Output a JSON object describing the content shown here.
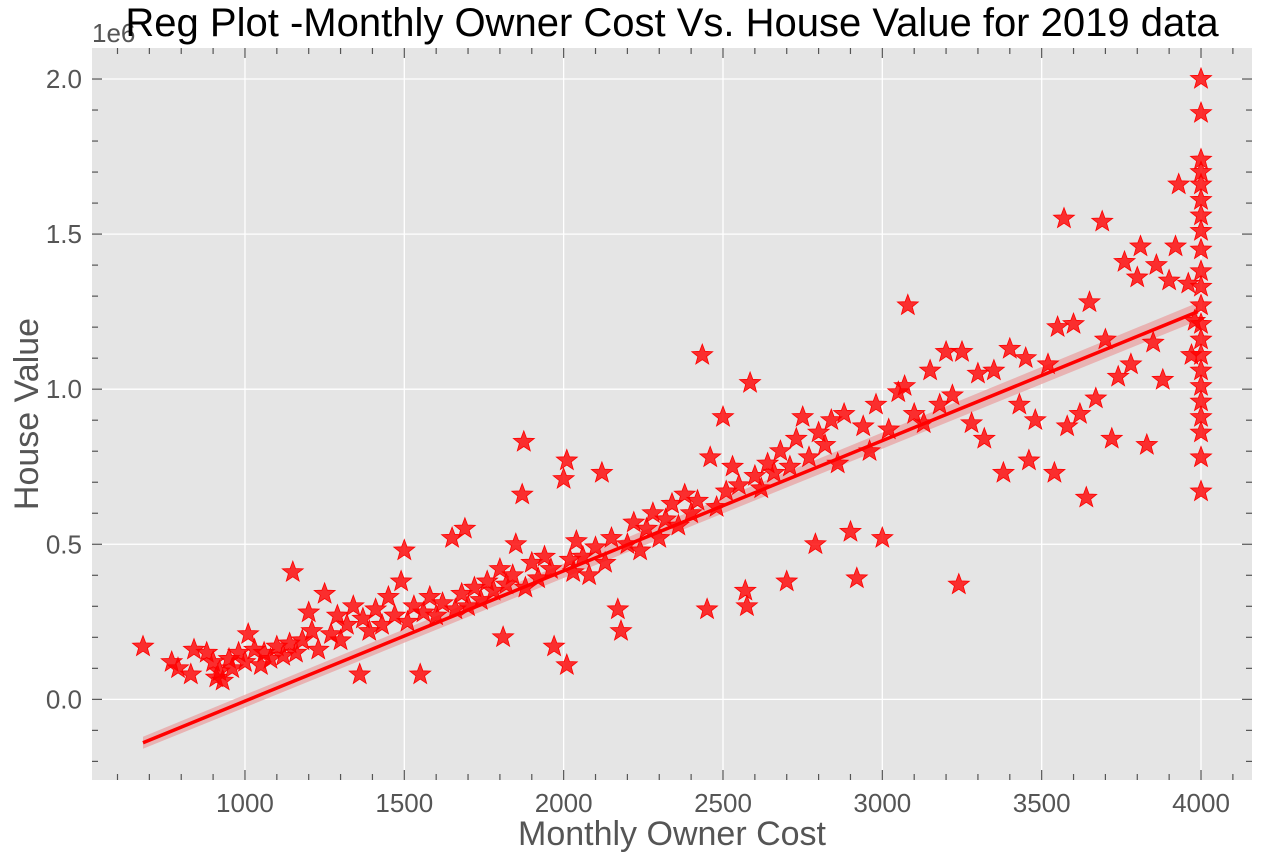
{
  "chart_data": {
    "type": "scatter",
    "title": "Reg Plot -Monthly Owner Cost Vs. House Value for 2019 data",
    "xlabel": "Monthly Owner Cost",
    "ylabel": "House Value",
    "y_offset_label": "1e6",
    "xlim": [
      520,
      4160
    ],
    "ylim": [
      -0.26,
      2.1
    ],
    "x_ticks": [
      1000,
      1500,
      2000,
      2500,
      3000,
      3500,
      4000
    ],
    "x_tick_labels": [
      "1000",
      "1500",
      "2000",
      "2500",
      "3000",
      "3500",
      "4000"
    ],
    "y_ticks": [
      0.0,
      0.5,
      1.0,
      1.5,
      2.0
    ],
    "y_tick_labels": [
      "0.0",
      "0.5",
      "1.0",
      "1.5",
      "2.0"
    ],
    "grid": true,
    "background": "#e5e5e5",
    "marker": "star",
    "marker_color": "#ff0000",
    "line_color": "#ff0000",
    "band_color": "#e8a6a6",
    "series": [
      {
        "kind": "scatter",
        "points": [
          [
            680,
            0.17
          ],
          [
            770,
            0.12
          ],
          [
            790,
            0.1
          ],
          [
            830,
            0.08
          ],
          [
            840,
            0.16
          ],
          [
            880,
            0.15
          ],
          [
            900,
            0.12
          ],
          [
            910,
            0.07
          ],
          [
            920,
            0.09
          ],
          [
            930,
            0.06
          ],
          [
            950,
            0.13
          ],
          [
            960,
            0.1
          ],
          [
            980,
            0.15
          ],
          [
            1000,
            0.12
          ],
          [
            1010,
            0.21
          ],
          [
            1030,
            0.16
          ],
          [
            1050,
            0.11
          ],
          [
            1060,
            0.15
          ],
          [
            1080,
            0.13
          ],
          [
            1100,
            0.17
          ],
          [
            1120,
            0.14
          ],
          [
            1140,
            0.18
          ],
          [
            1150,
            0.41
          ],
          [
            1160,
            0.15
          ],
          [
            1180,
            0.19
          ],
          [
            1200,
            0.28
          ],
          [
            1210,
            0.22
          ],
          [
            1230,
            0.16
          ],
          [
            1250,
            0.34
          ],
          [
            1270,
            0.21
          ],
          [
            1290,
            0.27
          ],
          [
            1300,
            0.19
          ],
          [
            1320,
            0.24
          ],
          [
            1340,
            0.3
          ],
          [
            1360,
            0.08
          ],
          [
            1370,
            0.26
          ],
          [
            1390,
            0.22
          ],
          [
            1410,
            0.29
          ],
          [
            1430,
            0.24
          ],
          [
            1450,
            0.33
          ],
          [
            1470,
            0.27
          ],
          [
            1490,
            0.38
          ],
          [
            1500,
            0.48
          ],
          [
            1510,
            0.25
          ],
          [
            1530,
            0.3
          ],
          [
            1550,
            0.08
          ],
          [
            1560,
            0.28
          ],
          [
            1580,
            0.33
          ],
          [
            1600,
            0.27
          ],
          [
            1620,
            0.31
          ],
          [
            1650,
            0.52
          ],
          [
            1660,
            0.29
          ],
          [
            1680,
            0.34
          ],
          [
            1690,
            0.55
          ],
          [
            1700,
            0.3
          ],
          [
            1720,
            0.36
          ],
          [
            1740,
            0.32
          ],
          [
            1760,
            0.38
          ],
          [
            1780,
            0.35
          ],
          [
            1800,
            0.42
          ],
          [
            1810,
            0.2
          ],
          [
            1820,
            0.37
          ],
          [
            1840,
            0.4
          ],
          [
            1850,
            0.5
          ],
          [
            1870,
            0.66
          ],
          [
            1875,
            0.83
          ],
          [
            1880,
            0.36
          ],
          [
            1900,
            0.44
          ],
          [
            1920,
            0.39
          ],
          [
            1940,
            0.46
          ],
          [
            1960,
            0.42
          ],
          [
            1970,
            0.17
          ],
          [
            2000,
            0.71
          ],
          [
            2010,
            0.77
          ],
          [
            2010,
            0.11
          ],
          [
            2020,
            0.45
          ],
          [
            2030,
            0.41
          ],
          [
            2040,
            0.51
          ],
          [
            2060,
            0.46
          ],
          [
            2080,
            0.4
          ],
          [
            2100,
            0.49
          ],
          [
            2120,
            0.73
          ],
          [
            2130,
            0.44
          ],
          [
            2150,
            0.52
          ],
          [
            2170,
            0.29
          ],
          [
            2180,
            0.22
          ],
          [
            2200,
            0.5
          ],
          [
            2220,
            0.57
          ],
          [
            2240,
            0.48
          ],
          [
            2260,
            0.55
          ],
          [
            2280,
            0.6
          ],
          [
            2300,
            0.52
          ],
          [
            2320,
            0.58
          ],
          [
            2340,
            0.63
          ],
          [
            2360,
            0.56
          ],
          [
            2380,
            0.66
          ],
          [
            2400,
            0.6
          ],
          [
            2420,
            0.64
          ],
          [
            2435,
            1.11
          ],
          [
            2450,
            0.29
          ],
          [
            2460,
            0.78
          ],
          [
            2480,
            0.62
          ],
          [
            2500,
            0.91
          ],
          [
            2510,
            0.67
          ],
          [
            2530,
            0.75
          ],
          [
            2550,
            0.69
          ],
          [
            2570,
            0.35
          ],
          [
            2575,
            0.3
          ],
          [
            2585,
            1.02
          ],
          [
            2600,
            0.72
          ],
          [
            2620,
            0.68
          ],
          [
            2640,
            0.76
          ],
          [
            2660,
            0.73
          ],
          [
            2680,
            0.8
          ],
          [
            2700,
            0.38
          ],
          [
            2710,
            0.75
          ],
          [
            2730,
            0.84
          ],
          [
            2750,
            0.91
          ],
          [
            2770,
            0.78
          ],
          [
            2790,
            0.5
          ],
          [
            2800,
            0.86
          ],
          [
            2820,
            0.82
          ],
          [
            2840,
            0.9
          ],
          [
            2860,
            0.76
          ],
          [
            2880,
            0.92
          ],
          [
            2900,
            0.54
          ],
          [
            2920,
            0.39
          ],
          [
            2940,
            0.88
          ],
          [
            2960,
            0.8
          ],
          [
            2980,
            0.95
          ],
          [
            3000,
            0.52
          ],
          [
            3020,
            0.87
          ],
          [
            3050,
            0.99
          ],
          [
            3070,
            1.01
          ],
          [
            3080,
            1.27
          ],
          [
            3100,
            0.92
          ],
          [
            3130,
            0.89
          ],
          [
            3150,
            1.06
          ],
          [
            3180,
            0.95
          ],
          [
            3200,
            1.12
          ],
          [
            3220,
            0.98
          ],
          [
            3240,
            0.37
          ],
          [
            3250,
            1.12
          ],
          [
            3280,
            0.89
          ],
          [
            3300,
            1.05
          ],
          [
            3320,
            0.84
          ],
          [
            3350,
            1.06
          ],
          [
            3380,
            0.73
          ],
          [
            3400,
            1.13
          ],
          [
            3430,
            0.95
          ],
          [
            3450,
            1.1
          ],
          [
            3460,
            0.77
          ],
          [
            3480,
            0.9
          ],
          [
            3520,
            1.08
          ],
          [
            3540,
            0.73
          ],
          [
            3550,
            1.2
          ],
          [
            3570,
            1.55
          ],
          [
            3580,
            0.88
          ],
          [
            3600,
            1.21
          ],
          [
            3620,
            0.92
          ],
          [
            3640,
            0.65
          ],
          [
            3650,
            1.28
          ],
          [
            3670,
            0.97
          ],
          [
            3690,
            1.54
          ],
          [
            3700,
            1.16
          ],
          [
            3720,
            0.84
          ],
          [
            3740,
            1.04
          ],
          [
            3760,
            1.41
          ],
          [
            3780,
            1.08
          ],
          [
            3800,
            1.36
          ],
          [
            3810,
            1.46
          ],
          [
            3830,
            0.82
          ],
          [
            3850,
            1.15
          ],
          [
            3860,
            1.4
          ],
          [
            3880,
            1.03
          ],
          [
            3900,
            1.35
          ],
          [
            3920,
            1.46
          ],
          [
            3930,
            1.66
          ],
          [
            3960,
            1.34
          ],
          [
            3970,
            1.11
          ],
          [
            3980,
            1.22
          ],
          [
            4000,
            2.0
          ],
          [
            4000,
            1.89
          ],
          [
            4000,
            1.74
          ],
          [
            4000,
            1.7
          ],
          [
            4000,
            1.66
          ],
          [
            4000,
            1.61
          ],
          [
            4000,
            1.56
          ],
          [
            4000,
            1.51
          ],
          [
            4000,
            1.45
          ],
          [
            4000,
            1.38
          ],
          [
            4000,
            1.33
          ],
          [
            4000,
            1.27
          ],
          [
            4000,
            1.21
          ],
          [
            4000,
            1.16
          ],
          [
            4000,
            1.11
          ],
          [
            4000,
            1.06
          ],
          [
            4000,
            1.01
          ],
          [
            4000,
            0.96
          ],
          [
            4000,
            0.91
          ],
          [
            4000,
            0.86
          ],
          [
            4000,
            0.78
          ],
          [
            4000,
            0.67
          ]
        ]
      },
      {
        "kind": "regression_line",
        "x": [
          680,
          3990
        ],
        "y": [
          -0.14,
          1.25
        ]
      }
    ]
  }
}
